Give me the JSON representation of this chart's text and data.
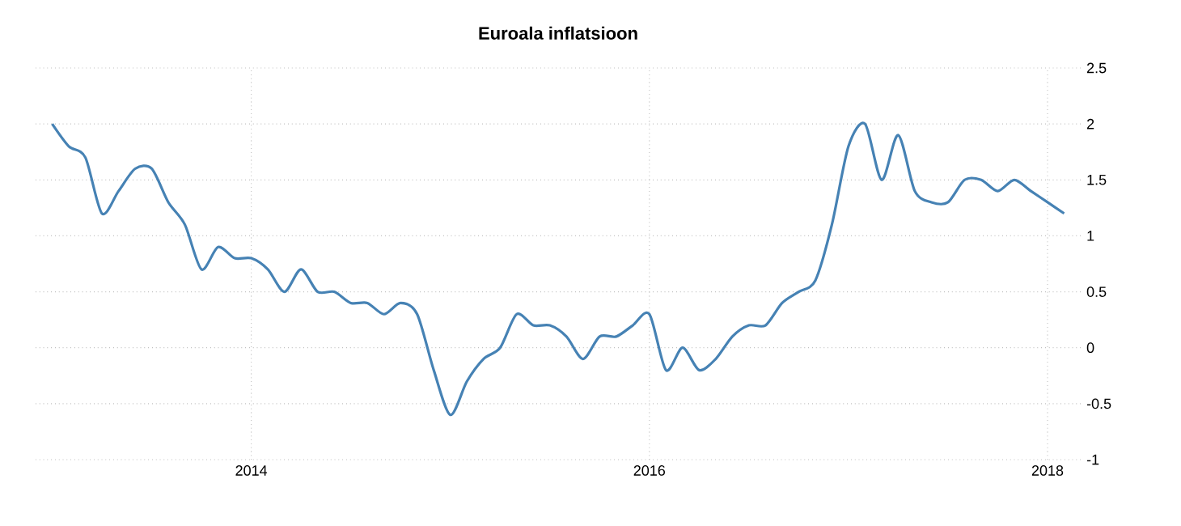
{
  "chart_data": {
    "type": "line",
    "title": "Euroala inflatsioon",
    "x": [
      "2013-01",
      "2013-02",
      "2013-03",
      "2013-04",
      "2013-05",
      "2013-06",
      "2013-07",
      "2013-08",
      "2013-09",
      "2013-10",
      "2013-11",
      "2013-12",
      "2014-01",
      "2014-02",
      "2014-03",
      "2014-04",
      "2014-05",
      "2014-06",
      "2014-07",
      "2014-08",
      "2014-09",
      "2014-10",
      "2014-11",
      "2014-12",
      "2015-01",
      "2015-02",
      "2015-03",
      "2015-04",
      "2015-05",
      "2015-06",
      "2015-07",
      "2015-08",
      "2015-09",
      "2015-10",
      "2015-11",
      "2015-12",
      "2016-01",
      "2016-02",
      "2016-03",
      "2016-04",
      "2016-05",
      "2016-06",
      "2016-07",
      "2016-08",
      "2016-09",
      "2016-10",
      "2016-11",
      "2016-12",
      "2017-01",
      "2017-02",
      "2017-03",
      "2017-04",
      "2017-05",
      "2017-06",
      "2017-07",
      "2017-08",
      "2017-09",
      "2017-10",
      "2017-11",
      "2017-12",
      "2018-01",
      "2018-02"
    ],
    "series": [
      {
        "color": "#4682b4",
        "values": [
          2.0,
          1.8,
          1.7,
          1.2,
          1.4,
          1.6,
          1.6,
          1.3,
          1.1,
          0.7,
          0.9,
          0.8,
          0.8,
          0.7,
          0.5,
          0.7,
          0.5,
          0.5,
          0.4,
          0.4,
          0.3,
          0.4,
          0.3,
          -0.2,
          -0.6,
          -0.3,
          -0.1,
          0.0,
          0.3,
          0.2,
          0.2,
          0.1,
          -0.1,
          0.1,
          0.1,
          0.2,
          0.3,
          -0.2,
          0.0,
          -0.2,
          -0.1,
          0.1,
          0.2,
          0.2,
          0.4,
          0.5,
          0.6,
          1.1,
          1.8,
          2.0,
          1.5,
          1.9,
          1.4,
          1.3,
          1.3,
          1.5,
          1.5,
          1.4,
          1.5,
          1.4,
          1.3,
          1.2
        ]
      }
    ],
    "xlim": [
      "2012-12",
      "2018-03"
    ],
    "xticks": [
      "2014",
      "2016",
      "2018"
    ],
    "ylim": [
      -1,
      2.5
    ],
    "yticks": [
      -1,
      -0.5,
      0,
      0.5,
      1,
      1.5,
      2,
      2.5
    ],
    "grid": true,
    "line_style": "solid"
  }
}
